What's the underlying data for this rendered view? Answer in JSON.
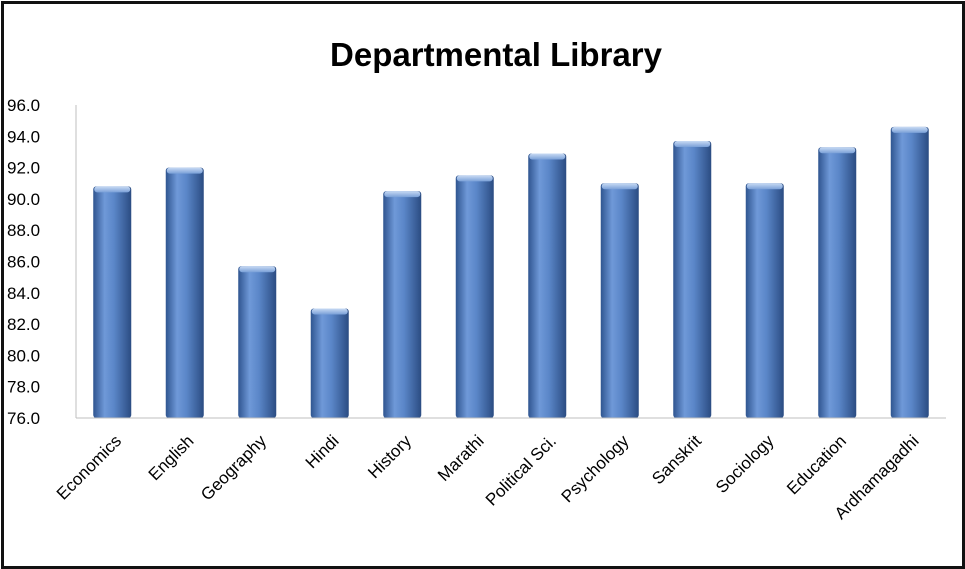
{
  "chart_data": {
    "type": "bar",
    "title": "Departmental  Library",
    "xlabel": "",
    "ylabel": "",
    "ylim": [
      76.0,
      96.0
    ],
    "yticks": [
      "76.0",
      "78.0",
      "80.0",
      "82.0",
      "84.0",
      "86.0",
      "88.0",
      "90.0",
      "92.0",
      "94.0",
      "96.0"
    ],
    "categories": [
      "Economics",
      "English",
      "Geography",
      "Hindi",
      "History",
      "Marathi",
      "Political Sci.",
      "Psychology",
      "Sanskrit",
      "Sociology",
      "Education",
      "Ardhamagadhi"
    ],
    "values": [
      90.8,
      92.0,
      85.7,
      83.0,
      90.5,
      91.5,
      92.9,
      91.0,
      93.7,
      91.0,
      93.3,
      94.6
    ],
    "grid": false,
    "legend": "none",
    "colors": {
      "bar_light": "#8fb2e6",
      "bar_mid": "#4f81c9",
      "bar_dark": "#2c4f86",
      "axis": "#bfbfbf"
    }
  }
}
